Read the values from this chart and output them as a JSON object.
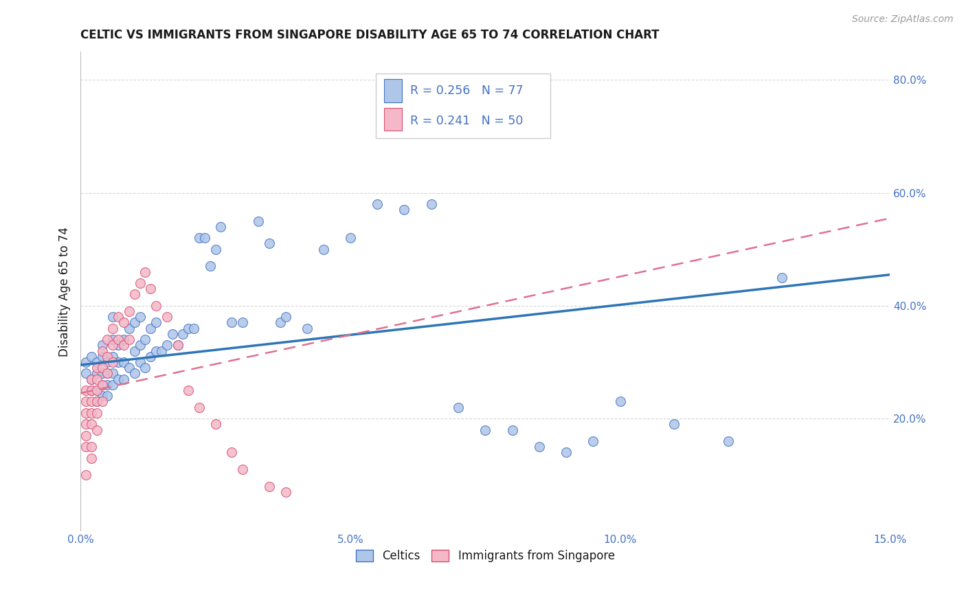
{
  "title": "CELTIC VS IMMIGRANTS FROM SINGAPORE DISABILITY AGE 65 TO 74 CORRELATION CHART",
  "source": "Source: ZipAtlas.com",
  "ylabel": "Disability Age 65 to 74",
  "x_min": 0.0,
  "x_max": 0.15,
  "y_min": 0.0,
  "y_max": 0.85,
  "x_ticks": [
    0.0,
    0.05,
    0.1,
    0.15
  ],
  "x_tick_labels": [
    "0.0%",
    "5.0%",
    "10.0%",
    "15.0%"
  ],
  "y_ticks": [
    0.2,
    0.4,
    0.6,
    0.8
  ],
  "y_tick_labels": [
    "20.0%",
    "40.0%",
    "60.0%",
    "80.0%"
  ],
  "celtics_color": "#aec6e8",
  "celtics_edge_color": "#4472c4",
  "singapore_color": "#f4b8c8",
  "singapore_edge_color": "#d94f70",
  "celtics_line_color": "#2e75b6",
  "singapore_line_color": "#e07090",
  "R_celtics": 0.256,
  "N_celtics": 77,
  "R_singapore": 0.241,
  "N_singapore": 50,
  "celtics_line_y0": 0.295,
  "celtics_line_y1": 0.455,
  "singapore_line_y0": 0.245,
  "singapore_line_y1": 0.555,
  "celtics_x": [
    0.001,
    0.001,
    0.002,
    0.002,
    0.002,
    0.003,
    0.003,
    0.003,
    0.003,
    0.004,
    0.004,
    0.004,
    0.004,
    0.004,
    0.005,
    0.005,
    0.005,
    0.005,
    0.006,
    0.006,
    0.006,
    0.006,
    0.006,
    0.007,
    0.007,
    0.007,
    0.008,
    0.008,
    0.008,
    0.009,
    0.009,
    0.01,
    0.01,
    0.01,
    0.011,
    0.011,
    0.011,
    0.012,
    0.012,
    0.013,
    0.013,
    0.014,
    0.014,
    0.015,
    0.016,
    0.017,
    0.018,
    0.019,
    0.02,
    0.021,
    0.022,
    0.023,
    0.024,
    0.025,
    0.026,
    0.028,
    0.03,
    0.033,
    0.035,
    0.037,
    0.038,
    0.042,
    0.045,
    0.05,
    0.055,
    0.06,
    0.065,
    0.07,
    0.075,
    0.08,
    0.085,
    0.09,
    0.095,
    0.1,
    0.11,
    0.12,
    0.13
  ],
  "celtics_y": [
    0.28,
    0.3,
    0.25,
    0.27,
    0.31,
    0.25,
    0.28,
    0.3,
    0.23,
    0.24,
    0.26,
    0.28,
    0.31,
    0.33,
    0.24,
    0.26,
    0.28,
    0.3,
    0.26,
    0.28,
    0.31,
    0.34,
    0.38,
    0.27,
    0.3,
    0.33,
    0.27,
    0.3,
    0.34,
    0.29,
    0.36,
    0.28,
    0.32,
    0.37,
    0.3,
    0.33,
    0.38,
    0.29,
    0.34,
    0.31,
    0.36,
    0.32,
    0.37,
    0.32,
    0.33,
    0.35,
    0.33,
    0.35,
    0.36,
    0.36,
    0.52,
    0.52,
    0.47,
    0.5,
    0.54,
    0.37,
    0.37,
    0.55,
    0.51,
    0.37,
    0.38,
    0.36,
    0.5,
    0.52,
    0.58,
    0.57,
    0.58,
    0.22,
    0.18,
    0.18,
    0.15,
    0.14,
    0.16,
    0.23,
    0.19,
    0.16,
    0.45
  ],
  "singapore_x": [
    0.001,
    0.001,
    0.001,
    0.001,
    0.001,
    0.001,
    0.001,
    0.002,
    0.002,
    0.002,
    0.002,
    0.002,
    0.002,
    0.002,
    0.003,
    0.003,
    0.003,
    0.003,
    0.003,
    0.003,
    0.004,
    0.004,
    0.004,
    0.004,
    0.005,
    0.005,
    0.005,
    0.006,
    0.006,
    0.006,
    0.007,
    0.007,
    0.008,
    0.008,
    0.009,
    0.009,
    0.01,
    0.011,
    0.012,
    0.013,
    0.014,
    0.016,
    0.018,
    0.02,
    0.022,
    0.025,
    0.028,
    0.03,
    0.035,
    0.038
  ],
  "singapore_y": [
    0.25,
    0.23,
    0.21,
    0.19,
    0.17,
    0.15,
    0.1,
    0.27,
    0.25,
    0.23,
    0.21,
    0.19,
    0.15,
    0.13,
    0.29,
    0.27,
    0.25,
    0.23,
    0.21,
    0.18,
    0.32,
    0.29,
    0.26,
    0.23,
    0.34,
    0.31,
    0.28,
    0.36,
    0.33,
    0.3,
    0.38,
    0.34,
    0.37,
    0.33,
    0.39,
    0.34,
    0.42,
    0.44,
    0.46,
    0.43,
    0.4,
    0.38,
    0.33,
    0.25,
    0.22,
    0.19,
    0.14,
    0.11,
    0.08,
    0.07
  ],
  "background_color": "#ffffff",
  "grid_color": "#d8d8d8",
  "title_color": "#1a1a1a",
  "tick_color": "#4472c4",
  "legend_box_color": "#cccccc"
}
